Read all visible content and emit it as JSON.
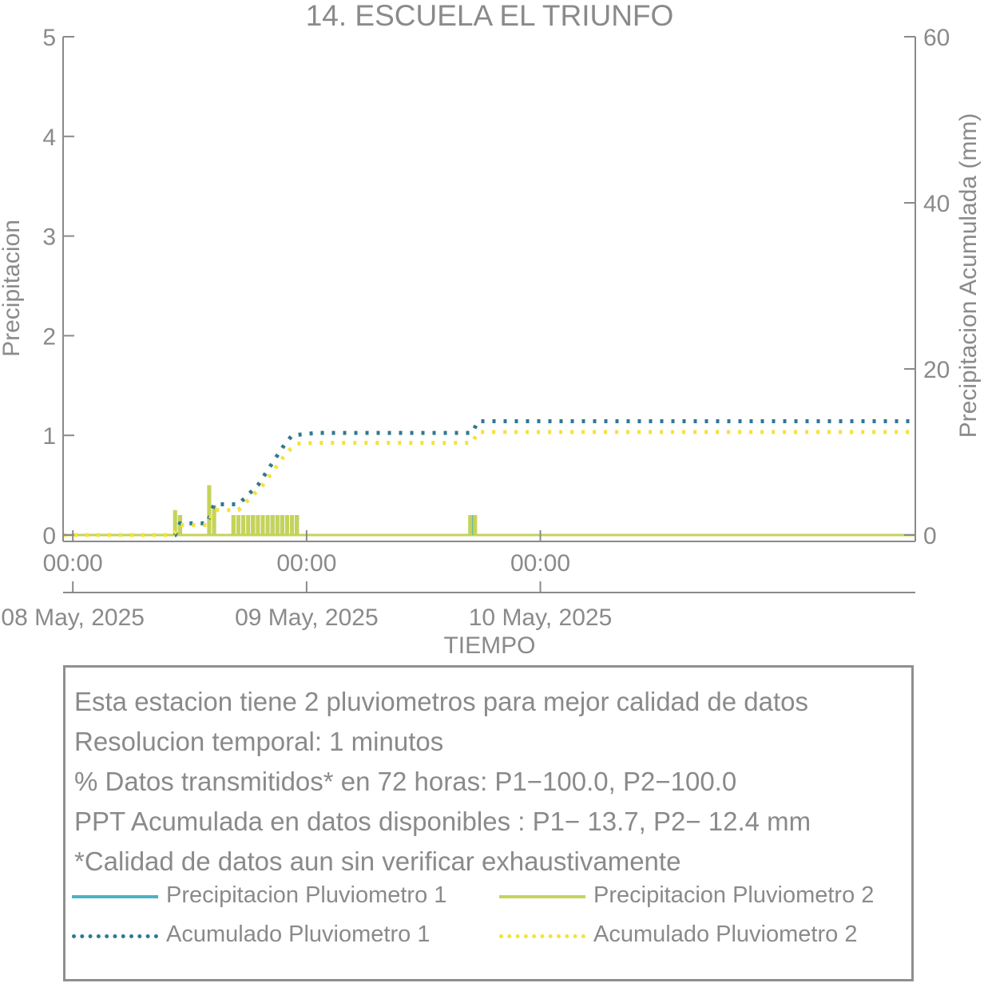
{
  "chart_data": {
    "type": "bar",
    "title": "14. ESCUELA EL TRIUNFO",
    "xlabel": "TIEMPO",
    "ylabel": "Precipitacion",
    "ylabel_right": "Precipitacion Acumulada (mm)",
    "xlim_hours": [
      -1,
      86.5
    ],
    "ylim": [
      0,
      5
    ],
    "y_ticks": [
      0,
      1,
      2,
      3,
      4,
      5
    ],
    "ylim_right": [
      0,
      60
    ],
    "y_ticks_right": [
      0,
      20,
      40,
      60
    ],
    "x_ticks": [
      {
        "hour": 0,
        "time": "00:00",
        "date": "08 May, 2025"
      },
      {
        "hour": 24,
        "time": "00:00",
        "date": "09 May, 2025"
      },
      {
        "hour": 48,
        "time": "00:00",
        "date": "10 May, 2025"
      }
    ],
    "grid": false,
    "colors": {
      "p1": "#4ab3c4",
      "p2": "#c5d35a",
      "acc1": "#2f7891",
      "acc2": "#f3e33b",
      "axis": "#8a8a8a"
    },
    "series": [
      {
        "name": "Precipitacion Pluviometro 1",
        "style": "bar",
        "points": [
          [
            11.0,
            0.2
          ],
          [
            14.5,
            0.3
          ],
          [
            16.5,
            0.2
          ],
          [
            18.5,
            0.2
          ],
          [
            20.5,
            0.2
          ],
          [
            21.5,
            0.2
          ],
          [
            23.0,
            0.2
          ],
          [
            41.0,
            0.2
          ]
        ]
      },
      {
        "name": "Precipitacion Pluviometro 2",
        "style": "bar",
        "points": [
          [
            10.5,
            0.25
          ],
          [
            11.0,
            0.2
          ],
          [
            14.0,
            0.5
          ],
          [
            14.5,
            0.3
          ],
          [
            16.5,
            0.2
          ],
          [
            17.0,
            0.2
          ],
          [
            17.5,
            0.2
          ],
          [
            18.0,
            0.2
          ],
          [
            18.5,
            0.2
          ],
          [
            19.0,
            0.2
          ],
          [
            19.5,
            0.2
          ],
          [
            20.0,
            0.2
          ],
          [
            20.5,
            0.2
          ],
          [
            21.0,
            0.2
          ],
          [
            21.5,
            0.2
          ],
          [
            22.0,
            0.2
          ],
          [
            22.5,
            0.2
          ],
          [
            23.0,
            0.2
          ],
          [
            40.8,
            0.2
          ],
          [
            41.3,
            0.2
          ]
        ]
      },
      {
        "name": "Acumulado Pluviometro 1",
        "style": "dotted-line",
        "points": [
          [
            -1,
            0
          ],
          [
            10.5,
            0
          ],
          [
            11.0,
            1.4
          ],
          [
            13.8,
            1.4
          ],
          [
            14.5,
            3.7
          ],
          [
            17.0,
            3.7
          ],
          [
            19.0,
            6.0
          ],
          [
            21.5,
            10.5
          ],
          [
            22.5,
            12.0
          ],
          [
            25.0,
            12.3
          ],
          [
            41.0,
            12.3
          ],
          [
            41.6,
            13.7
          ],
          [
            86.5,
            13.7
          ]
        ]
      },
      {
        "name": "Acumulado Pluviometro 2",
        "style": "dotted-line",
        "points": [
          [
            -1,
            0
          ],
          [
            10.3,
            0
          ],
          [
            11.0,
            1.2
          ],
          [
            13.8,
            1.2
          ],
          [
            14.5,
            3.0
          ],
          [
            17.0,
            3.0
          ],
          [
            19.5,
            6.0
          ],
          [
            22.0,
            10.0
          ],
          [
            23.0,
            11.0
          ],
          [
            25.0,
            11.1
          ],
          [
            41.0,
            11.1
          ],
          [
            41.6,
            12.4
          ],
          [
            86.5,
            12.4
          ]
        ]
      }
    ]
  },
  "info": {
    "lines": [
      "Esta estacion tiene 2 pluviometros para mejor calidad de datos",
      "Resolucion temporal: 1 minutos",
      "% Datos transmitidos* en 72 horas: P1−100.0, P2−100.0",
      "PPT Acumulada en datos disponibles : P1− 13.7, P2− 12.4 mm",
      "*Calidad de datos aun sin verificar exhaustivamente"
    ]
  },
  "legend": {
    "items": [
      {
        "label": "Precipitacion Pluviometro 1",
        "color": "#4ab3c4",
        "style": "solid"
      },
      {
        "label": "Precipitacion Pluviometro 2",
        "color": "#c5d35a",
        "style": "solid"
      },
      {
        "label": "Acumulado Pluviometro 1",
        "color": "#2f7891",
        "style": "dotted"
      },
      {
        "label": "Acumulado Pluviometro 2",
        "color": "#f3e33b",
        "style": "dotted"
      }
    ]
  }
}
